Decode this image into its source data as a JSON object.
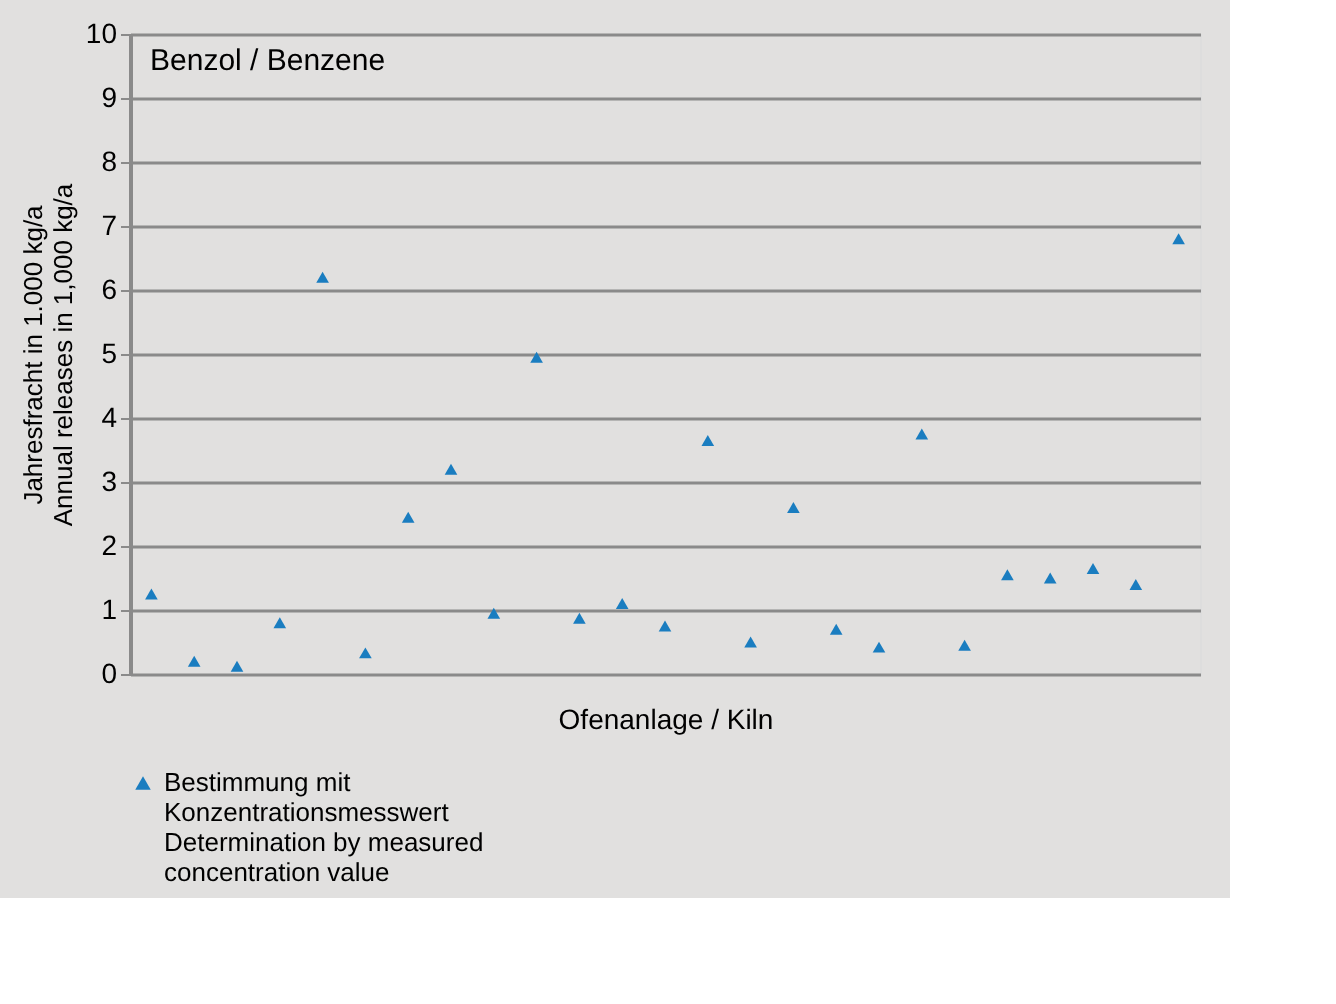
{
  "chart_data": {
    "type": "scatter",
    "title": "Benzol / Benzene",
    "xlabel": "Ofenanlage / Kiln",
    "ylabel": "Jahresfracht in 1.000 kg/a\nAnnual releases in 1,000 kg/a",
    "categories": [
      null,
      null,
      null,
      null,
      null,
      null,
      null,
      null,
      null,
      null,
      null,
      null,
      null,
      null,
      null,
      null,
      null,
      null,
      null,
      null,
      null,
      null,
      null,
      null,
      null
    ],
    "series": [
      {
        "name": "Bestimmung mit\nKonzentrationsmesswert\nDetermination by measured\nconcentration value",
        "color": "#1a7dc0",
        "values": [
          1.25,
          0.2,
          0.12,
          0.8,
          6.2,
          0.33,
          2.45,
          3.2,
          0.95,
          4.95,
          0.87,
          1.1,
          0.75,
          3.65,
          0.5,
          2.6,
          0.7,
          0.42,
          3.75,
          0.45,
          1.55,
          1.5,
          1.65,
          1.4,
          6.8
        ]
      }
    ],
    "ylim": [
      0,
      10
    ],
    "yticks": [
      0,
      1,
      2,
      3,
      4,
      5,
      6,
      7,
      8,
      9,
      10
    ],
    "grid": "y",
    "legend": "bottom left",
    "marker": "triangle"
  }
}
